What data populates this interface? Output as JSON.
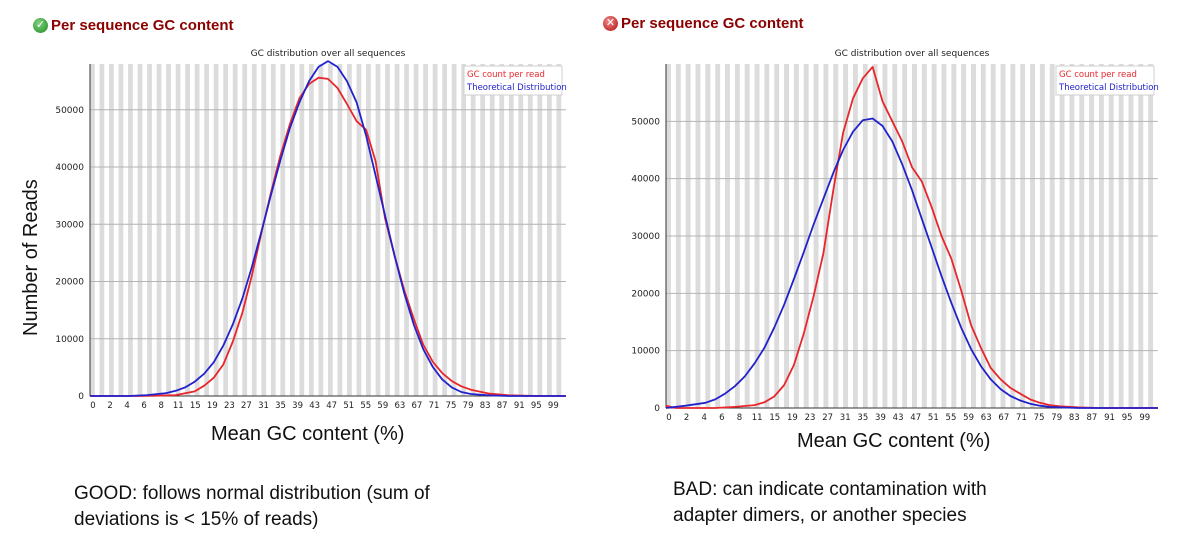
{
  "left": {
    "status": "pass",
    "status_icon": "check-circle-icon",
    "module_title": "Per sequence GC content",
    "y_axis_title": "Number of Reads",
    "x_axis_title": "Mean GC content (%)",
    "caption_line1": "GOOD: follows normal distribution (sum of",
    "caption_line2": "deviations is < 15% of reads)"
  },
  "right": {
    "status": "fail",
    "status_icon": "x-circle-icon",
    "module_title": "Per sequence GC content",
    "x_axis_title": "Mean GC content (%)",
    "caption_line1": "BAD: can indicate contamination with",
    "caption_line2": "adapter dimers, or another species"
  },
  "chart_data": [
    {
      "type": "line",
      "title": "GC distribution over all sequences",
      "x_ticks": [
        "0",
        "2",
        "4",
        "6",
        "8",
        "11",
        "15",
        "19",
        "23",
        "27",
        "31",
        "35",
        "39",
        "43",
        "47",
        "51",
        "55",
        "59",
        "63",
        "67",
        "71",
        "75",
        "79",
        "83",
        "87",
        "91",
        "95",
        "99"
      ],
      "xlim": [
        0,
        100
      ],
      "ylim": [
        0,
        58000
      ],
      "y_ticks": [
        0,
        10000,
        20000,
        30000,
        40000,
        50000
      ],
      "grid": true,
      "legend_position": "top-right",
      "series": [
        {
          "name": "GC count per read",
          "color": "#e8262b",
          "x": [
            0,
            10,
            14,
            18,
            22,
            24,
            26,
            28,
            30,
            32,
            34,
            36,
            38,
            40,
            42,
            44,
            46,
            48,
            50,
            52,
            54,
            56,
            58,
            60,
            62,
            64,
            66,
            68,
            70,
            72,
            74,
            76,
            78,
            80,
            84,
            88,
            92,
            96,
            100
          ],
          "y": [
            0,
            0,
            50,
            150,
            800,
            1800,
            3200,
            5500,
            9500,
            14500,
            21000,
            28500,
            35500,
            42000,
            47500,
            52000,
            54500,
            55600,
            55400,
            53800,
            51000,
            48000,
            46500,
            41000,
            31000,
            24500,
            18500,
            13500,
            9000,
            6000,
            4000,
            2600,
            1700,
            1100,
            400,
            120,
            30,
            0,
            0
          ]
        },
        {
          "name": "Theoretical Distribution",
          "color": "#2222cc",
          "x": [
            0,
            8,
            12,
            16,
            18,
            20,
            22,
            24,
            26,
            28,
            30,
            32,
            34,
            36,
            38,
            40,
            42,
            44,
            46,
            48,
            50,
            52,
            54,
            56,
            58,
            60,
            62,
            64,
            66,
            68,
            70,
            72,
            74,
            76,
            78,
            80,
            84,
            88,
            92,
            96,
            100
          ],
          "y": [
            0,
            0,
            150,
            500,
            900,
            1500,
            2500,
            3900,
            5900,
            8800,
            12500,
            17000,
            22500,
            28700,
            35100,
            41200,
            46800,
            51300,
            55000,
            57500,
            58500,
            57500,
            55000,
            51300,
            45500,
            38500,
            31500,
            24500,
            18000,
            12500,
            8200,
            5100,
            2900,
            1500,
            700,
            350,
            100,
            0,
            0,
            0,
            0
          ]
        }
      ]
    },
    {
      "type": "line",
      "title": "GC distribution over all sequences",
      "x_ticks": [
        "0",
        "2",
        "4",
        "6",
        "8",
        "11",
        "15",
        "19",
        "23",
        "27",
        "31",
        "35",
        "39",
        "43",
        "47",
        "51",
        "55",
        "59",
        "63",
        "67",
        "71",
        "75",
        "79",
        "83",
        "87",
        "91",
        "95",
        "99"
      ],
      "xlim": [
        0,
        100
      ],
      "ylim": [
        0,
        60000
      ],
      "y_ticks": [
        0,
        10000,
        20000,
        30000,
        40000,
        50000
      ],
      "grid": true,
      "legend_position": "top-right",
      "series": [
        {
          "name": "GC count per read",
          "color": "#e8262b",
          "x": [
            0,
            2,
            10,
            14,
            18,
            20,
            22,
            24,
            26,
            28,
            30,
            32,
            34,
            36,
            38,
            40,
            42,
            44,
            46,
            48,
            50,
            52,
            54,
            56,
            58,
            60,
            62,
            64,
            66,
            68,
            70,
            72,
            74,
            76,
            78,
            80,
            84,
            88,
            92,
            96,
            100
          ],
          "y": [
            400,
            0,
            0,
            200,
            500,
            1000,
            2000,
            4000,
            7500,
            13000,
            19500,
            27000,
            38000,
            48000,
            54000,
            57500,
            59500,
            53500,
            50000,
            46500,
            42000,
            39500,
            35000,
            30000,
            26000,
            20500,
            14500,
            10500,
            7000,
            5000,
            3500,
            2500,
            1500,
            900,
            500,
            300,
            100,
            0,
            0,
            0,
            0
          ]
        },
        {
          "name": "Theoretical Distribution",
          "color": "#2222cc",
          "x": [
            0,
            4,
            8,
            10,
            12,
            14,
            16,
            18,
            20,
            22,
            24,
            26,
            28,
            30,
            32,
            34,
            36,
            38,
            40,
            42,
            44,
            46,
            48,
            50,
            52,
            54,
            56,
            58,
            60,
            62,
            64,
            66,
            68,
            70,
            72,
            74,
            76,
            78,
            80,
            84,
            88,
            92,
            96,
            100
          ],
          "y": [
            0,
            400,
            900,
            1500,
            2500,
            3800,
            5500,
            7800,
            10500,
            14000,
            18000,
            22500,
            27200,
            32000,
            36500,
            41000,
            45000,
            48200,
            50200,
            50500,
            49200,
            46500,
            42500,
            38000,
            33000,
            28000,
            23000,
            18300,
            14000,
            10300,
            7300,
            5000,
            3300,
            2100,
            1300,
            750,
            400,
            200,
            100,
            0,
            0,
            0,
            0,
            0
          ]
        }
      ]
    }
  ]
}
